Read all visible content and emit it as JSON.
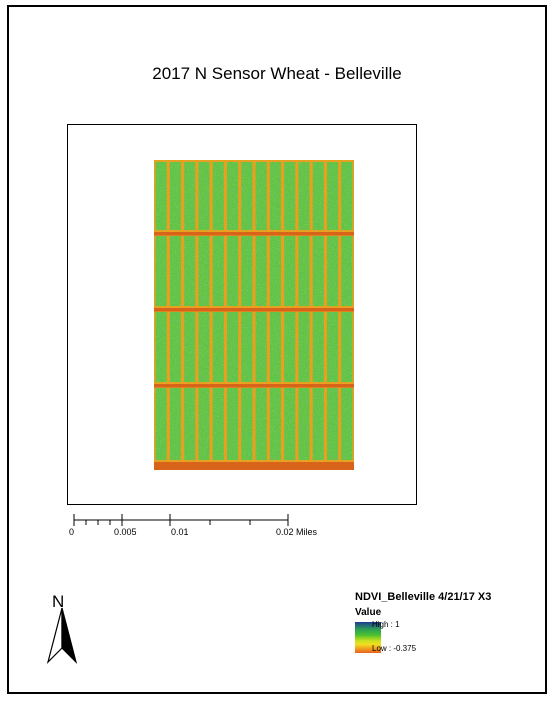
{
  "map": {
    "title": "2017 N Sensor Wheat - Belleville"
  },
  "scale_bar": {
    "labels": [
      "0",
      "0.005",
      "0.01",
      "0.02 Miles"
    ],
    "values": [
      0,
      0.005,
      0.01,
      0.02
    ],
    "unit": "Miles"
  },
  "north_arrow": {
    "label": "N",
    "icon": "north-arrow-icon"
  },
  "legend": {
    "title": "NDVI_Belleville 4/21/17 X3",
    "subtitle": "Value",
    "high": "High : 1",
    "low": "Low : -0.375",
    "high_value": 1,
    "low_value": -0.375,
    "ramp_colors": [
      "#1f3b8f",
      "#2a9b5a",
      "#4cc02e",
      "#c8e01f",
      "#f0e020",
      "#f0a020",
      "#e8601a"
    ]
  },
  "raster": {
    "colors": {
      "background": "#e8a020",
      "soil": "#d8641c",
      "high": "#1f5fa0",
      "green": "#2fa84a",
      "light_green": "#5cc43a",
      "yellow": "#e0e020"
    }
  }
}
